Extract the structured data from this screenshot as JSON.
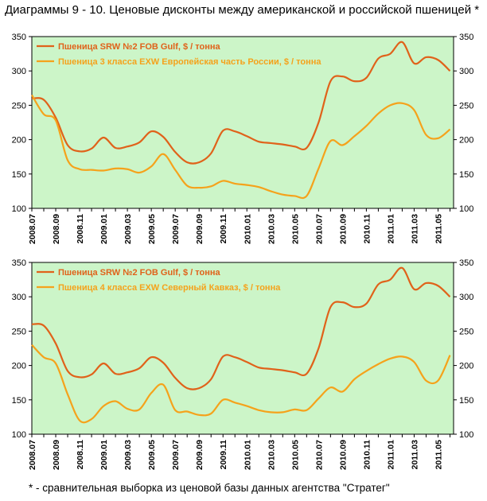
{
  "title": "Диаграммы 9 - 10. Ценовые дисконты между американской и российской пшеницей *",
  "footnote": "* - сравнительная выборка из ценовой базы данных агентства \"Стратег\"",
  "colors": {
    "us": "#e0621a",
    "ru": "#f5a21b",
    "plot_bg": "#ccf5c8"
  },
  "chart_data": [
    {
      "type": "line",
      "title": "",
      "xlabel": "",
      "ylabel": "",
      "ylim": [
        100,
        350
      ],
      "yticks": [
        "100",
        "150",
        "200",
        "250",
        "300",
        "350"
      ],
      "x_ticks": [
        "2008.07",
        "2008.09",
        "2008.11",
        "2009.01",
        "2009.03",
        "2009.05",
        "2009.07",
        "2009.09",
        "2009.11",
        "2010.01",
        "2010.03",
        "2010.05",
        "2010.07",
        "2010.09",
        "2010.11",
        "2011.01",
        "2011.03",
        "2011.05"
      ],
      "x": [
        "2008.07",
        "2008.08",
        "2008.09",
        "2008.10",
        "2008.11",
        "2008.12",
        "2009.01",
        "2009.02",
        "2009.03",
        "2009.04",
        "2009.05",
        "2009.06",
        "2009.07",
        "2009.08",
        "2009.09",
        "2009.10",
        "2009.11",
        "2009.12",
        "2010.01",
        "2010.02",
        "2010.03",
        "2010.04",
        "2010.05",
        "2010.06",
        "2010.07",
        "2010.08",
        "2010.09",
        "2010.10",
        "2010.11",
        "2010.12",
        "2011.01",
        "2011.02",
        "2011.03",
        "2011.04",
        "2011.05",
        "2011.06"
      ],
      "legend_position": "top-left",
      "grid": false,
      "series": [
        {
          "name": "Пшеница SRW №2 FOB Gulf, $ / тонна",
          "color": "#e0621a",
          "values": [
            260,
            258,
            232,
            192,
            183,
            187,
            203,
            188,
            190,
            196,
            212,
            204,
            182,
            167,
            167,
            180,
            213,
            212,
            205,
            197,
            195,
            193,
            190,
            188,
            225,
            285,
            292,
            285,
            290,
            318,
            325,
            342,
            311,
            320,
            316,
            300
          ]
        },
        {
          "name": "Пшеница 3 класса EXW Европейская часть России, $ / тонна",
          "color": "#f5a21b",
          "values": [
            265,
            237,
            228,
            170,
            157,
            156,
            155,
            158,
            157,
            152,
            161,
            179,
            156,
            133,
            130,
            132,
            140,
            136,
            134,
            131,
            125,
            120,
            118,
            118,
            158,
            198,
            192,
            205,
            220,
            238,
            250,
            253,
            243,
            207,
            202,
            215
          ]
        }
      ]
    },
    {
      "type": "line",
      "title": "",
      "xlabel": "",
      "ylabel": "",
      "ylim": [
        100,
        350
      ],
      "yticks": [
        "100",
        "150",
        "200",
        "250",
        "300",
        "350"
      ],
      "x_ticks": [
        "2008.07",
        "2008.09",
        "2008.11",
        "2009.01",
        "2009.03",
        "2009.05",
        "2009.07",
        "2009.09",
        "2009.11",
        "2010.01",
        "2010.03",
        "2010.05",
        "2010.07",
        "2010.09",
        "2010.11",
        "2011.01",
        "2011.03",
        "2011.05"
      ],
      "x": [
        "2008.07",
        "2008.08",
        "2008.09",
        "2008.10",
        "2008.11",
        "2008.12",
        "2009.01",
        "2009.02",
        "2009.03",
        "2009.04",
        "2009.05",
        "2009.06",
        "2009.07",
        "2009.08",
        "2009.09",
        "2009.10",
        "2009.11",
        "2009.12",
        "2010.01",
        "2010.02",
        "2010.03",
        "2010.04",
        "2010.05",
        "2010.06",
        "2010.07",
        "2010.08",
        "2010.09",
        "2010.10",
        "2010.11",
        "2010.12",
        "2011.01",
        "2011.02",
        "2011.03",
        "2011.04",
        "2011.05",
        "2011.06"
      ],
      "legend_position": "top-left",
      "grid": false,
      "series": [
        {
          "name": "Пшеница SRW №2 FOB Gulf, $ / тонна",
          "color": "#e0621a",
          "values": [
            260,
            258,
            232,
            192,
            183,
            187,
            203,
            188,
            190,
            196,
            212,
            204,
            182,
            167,
            167,
            180,
            213,
            212,
            205,
            197,
            195,
            193,
            190,
            188,
            225,
            285,
            292,
            285,
            290,
            318,
            325,
            342,
            311,
            320,
            316,
            300
          ]
        },
        {
          "name": "Пшеница 4 класса EXW Северный Кавказ, $ / тонна",
          "color": "#f5a21b",
          "values": [
            230,
            212,
            203,
            158,
            120,
            122,
            141,
            148,
            137,
            136,
            160,
            172,
            135,
            133,
            128,
            130,
            150,
            146,
            141,
            135,
            132,
            132,
            136,
            135,
            152,
            168,
            162,
            180,
            192,
            202,
            210,
            213,
            205,
            178,
            178,
            215
          ]
        }
      ]
    }
  ]
}
